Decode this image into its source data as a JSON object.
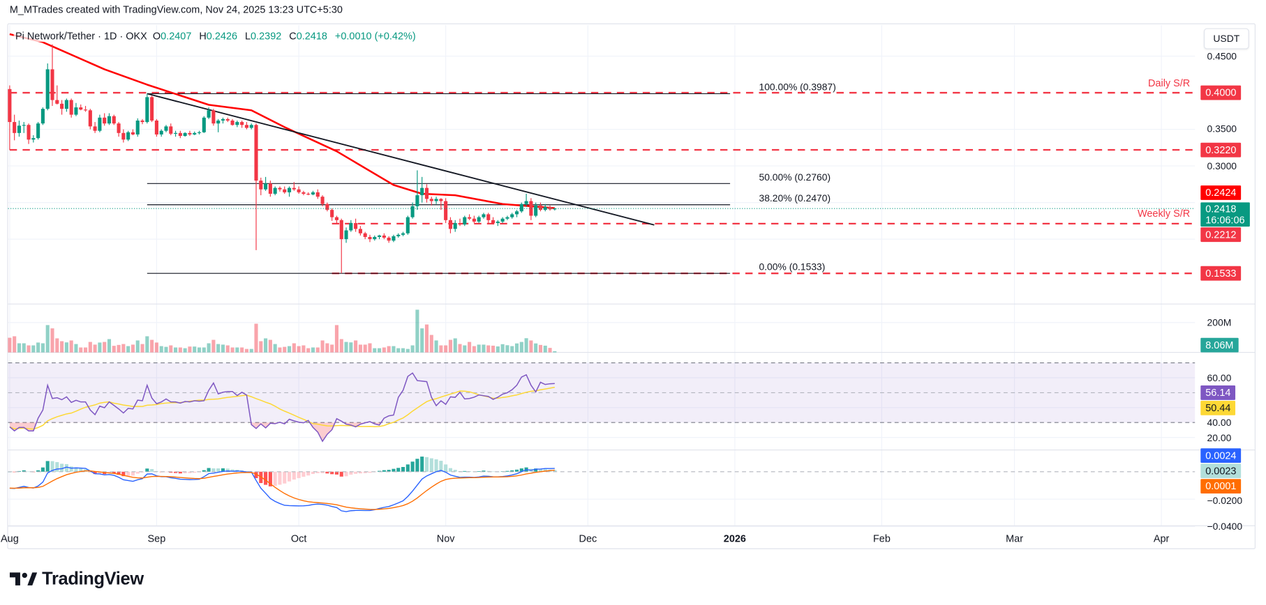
{
  "attribution": "M_MTrades created with TradingView.com, Nov 24, 2025 13:23 UTC+5:30",
  "legend": {
    "symbol": "Pi Network/Tether · 1D · OKX",
    "o_label": "O",
    "o": "0.2407",
    "h_label": "H",
    "h": "0.2426",
    "l_label": "L",
    "l": "0.2392",
    "c_label": "C",
    "c": "0.2418",
    "change": "+0.0010 (+0.42%)"
  },
  "currency_button": "USDT",
  "brand": "TradingView",
  "colors": {
    "up": "#089981",
    "down": "#f23645",
    "ma": "#ff0000",
    "sr": "#f23645",
    "rsi": "#7e57c2",
    "rsi_ma": "#fdd835",
    "macd": "#2962ff",
    "signal": "#ff6d00",
    "fib": "#131722",
    "trendline": "#131722"
  },
  "chart_data": [
    {
      "type": "candlestick",
      "pane": "price",
      "interval": "1D",
      "ylim": [
        0.14,
        0.47
      ],
      "grid": true,
      "y_ticks": [
        "0.4500",
        "0.3500",
        "0.3000"
      ],
      "candles_by_month": {
        "2025-08": [
          [
            0.405,
            0.41,
            0.322,
            0.36
          ],
          [
            0.36,
            0.37,
            0.335,
            0.345
          ],
          [
            0.345,
            0.362,
            0.34,
            0.355
          ],
          [
            0.355,
            0.36,
            0.345,
            0.356
          ],
          [
            0.356,
            0.358,
            0.33,
            0.336
          ],
          [
            0.336,
            0.342,
            0.332,
            0.338
          ],
          [
            0.338,
            0.36,
            0.336,
            0.358
          ],
          [
            0.358,
            0.38,
            0.356,
            0.378
          ],
          [
            0.378,
            0.44,
            0.376,
            0.432
          ],
          [
            0.432,
            0.466,
            0.382,
            0.39
          ],
          [
            0.39,
            0.41,
            0.384,
            0.385
          ],
          [
            0.385,
            0.39,
            0.37,
            0.378
          ],
          [
            0.378,
            0.392,
            0.374,
            0.39
          ],
          [
            0.39,
            0.392,
            0.366,
            0.37
          ],
          [
            0.37,
            0.386,
            0.368,
            0.38
          ],
          [
            0.38,
            0.384,
            0.376,
            0.377
          ],
          [
            0.377,
            0.382,
            0.374,
            0.376
          ],
          [
            0.376,
            0.378,
            0.35,
            0.354
          ],
          [
            0.354,
            0.36,
            0.345,
            0.348
          ],
          [
            0.348,
            0.37,
            0.346,
            0.366
          ],
          [
            0.366,
            0.372,
            0.355,
            0.358
          ],
          [
            0.358,
            0.372,
            0.356,
            0.368
          ],
          [
            0.368,
            0.37,
            0.356,
            0.358
          ],
          [
            0.358,
            0.36,
            0.34,
            0.345
          ],
          [
            0.345,
            0.35,
            0.332,
            0.336
          ],
          [
            0.336,
            0.348,
            0.334,
            0.346
          ],
          [
            0.346,
            0.35,
            0.342,
            0.343
          ],
          [
            0.343,
            0.365,
            0.34,
            0.362
          ],
          [
            0.362,
            0.364,
            0.357,
            0.36
          ],
          [
            0.36,
            0.3987,
            0.358,
            0.394
          ],
          [
            0.394,
            0.396,
            0.36,
            0.362
          ]
        ],
        "2025-09": [
          [
            0.362,
            0.364,
            0.34,
            0.343
          ],
          [
            0.343,
            0.35,
            0.34,
            0.348
          ],
          [
            0.348,
            0.356,
            0.346,
            0.354
          ],
          [
            0.354,
            0.358,
            0.342,
            0.344
          ],
          [
            0.344,
            0.348,
            0.34,
            0.345
          ],
          [
            0.345,
            0.348,
            0.338,
            0.341
          ],
          [
            0.341,
            0.346,
            0.34,
            0.345
          ],
          [
            0.345,
            0.348,
            0.341,
            0.343
          ],
          [
            0.343,
            0.347,
            0.342,
            0.345
          ],
          [
            0.345,
            0.348,
            0.343,
            0.346
          ],
          [
            0.346,
            0.368,
            0.345,
            0.366
          ],
          [
            0.366,
            0.38,
            0.364,
            0.376
          ],
          [
            0.376,
            0.378,
            0.355,
            0.358
          ],
          [
            0.358,
            0.364,
            0.346,
            0.362
          ],
          [
            0.362,
            0.366,
            0.358,
            0.364
          ],
          [
            0.364,
            0.366,
            0.36,
            0.362
          ],
          [
            0.362,
            0.364,
            0.355,
            0.356
          ],
          [
            0.356,
            0.362,
            0.353,
            0.36
          ],
          [
            0.36,
            0.362,
            0.352,
            0.356
          ],
          [
            0.356,
            0.36,
            0.35,
            0.352
          ],
          [
            0.352,
            0.358,
            0.35,
            0.356
          ],
          [
            0.356,
            0.358,
            0.185,
            0.28
          ],
          [
            0.28,
            0.284,
            0.26,
            0.268
          ],
          [
            0.268,
            0.285,
            0.266,
            0.276
          ],
          [
            0.276,
            0.28,
            0.258,
            0.262
          ],
          [
            0.262,
            0.272,
            0.26,
            0.27
          ],
          [
            0.27,
            0.272,
            0.265,
            0.268
          ],
          [
            0.268,
            0.272,
            0.262,
            0.264
          ],
          [
            0.264,
            0.272,
            0.258,
            0.27
          ],
          [
            0.27,
            0.278,
            0.266,
            0.268
          ]
        ],
        "2025-10": [
          [
            0.268,
            0.272,
            0.262,
            0.264
          ],
          [
            0.264,
            0.266,
            0.26,
            0.262
          ],
          [
            0.262,
            0.264,
            0.26,
            0.261
          ],
          [
            0.261,
            0.266,
            0.26,
            0.264
          ],
          [
            0.264,
            0.268,
            0.255,
            0.258
          ],
          [
            0.258,
            0.26,
            0.245,
            0.248
          ],
          [
            0.248,
            0.25,
            0.238,
            0.24
          ],
          [
            0.24,
            0.242,
            0.225,
            0.23
          ],
          [
            0.23,
            0.232,
            0.222,
            0.226
          ],
          [
            0.226,
            0.228,
            0.1533,
            0.2
          ],
          [
            0.2,
            0.216,
            0.195,
            0.212
          ],
          [
            0.212,
            0.226,
            0.21,
            0.222
          ],
          [
            0.222,
            0.228,
            0.21,
            0.214
          ],
          [
            0.214,
            0.218,
            0.205,
            0.208
          ],
          [
            0.208,
            0.21,
            0.2,
            0.203
          ],
          [
            0.203,
            0.206,
            0.196,
            0.2
          ],
          [
            0.2,
            0.205,
            0.198,
            0.203
          ],
          [
            0.203,
            0.206,
            0.2,
            0.205
          ],
          [
            0.205,
            0.208,
            0.2,
            0.202
          ],
          [
            0.202,
            0.204,
            0.195,
            0.198
          ],
          [
            0.198,
            0.206,
            0.196,
            0.204
          ],
          [
            0.204,
            0.208,
            0.202,
            0.206
          ],
          [
            0.206,
            0.21,
            0.204,
            0.208
          ],
          [
            0.208,
            0.232,
            0.206,
            0.23
          ],
          [
            0.23,
            0.25,
            0.228,
            0.245
          ],
          [
            0.245,
            0.294,
            0.24,
            0.26
          ],
          [
            0.26,
            0.285,
            0.25,
            0.27
          ],
          [
            0.27,
            0.275,
            0.25,
            0.255
          ],
          [
            0.255,
            0.258,
            0.246,
            0.252
          ],
          [
            0.252,
            0.258,
            0.248,
            0.255
          ],
          [
            0.255,
            0.256,
            0.24,
            0.252
          ]
        ],
        "2025-11": [
          [
            0.252,
            0.256,
            0.222,
            0.226
          ],
          [
            0.226,
            0.23,
            0.208,
            0.214
          ],
          [
            0.214,
            0.226,
            0.21,
            0.222
          ],
          [
            0.222,
            0.228,
            0.218,
            0.22
          ],
          [
            0.22,
            0.232,
            0.218,
            0.23
          ],
          [
            0.23,
            0.234,
            0.226,
            0.228
          ],
          [
            0.228,
            0.232,
            0.222,
            0.224
          ],
          [
            0.224,
            0.232,
            0.222,
            0.23
          ],
          [
            0.23,
            0.236,
            0.228,
            0.234
          ],
          [
            0.234,
            0.236,
            0.222,
            0.226
          ],
          [
            0.226,
            0.23,
            0.22,
            0.222
          ],
          [
            0.222,
            0.226,
            0.218,
            0.224
          ],
          [
            0.224,
            0.23,
            0.222,
            0.228
          ],
          [
            0.228,
            0.232,
            0.226,
            0.23
          ],
          [
            0.23,
            0.236,
            0.228,
            0.234
          ],
          [
            0.234,
            0.24,
            0.23,
            0.238
          ],
          [
            0.238,
            0.25,
            0.236,
            0.248
          ],
          [
            0.248,
            0.262,
            0.244,
            0.252
          ],
          [
            0.252,
            0.256,
            0.226,
            0.232
          ],
          [
            0.232,
            0.25,
            0.23,
            0.246
          ],
          [
            0.246,
            0.25,
            0.238,
            0.24
          ],
          [
            0.24,
            0.248,
            0.238,
            0.244
          ],
          [
            0.244,
            0.246,
            0.239,
            0.2407
          ],
          [
            0.2407,
            0.2426,
            0.2392,
            0.2418
          ]
        ]
      },
      "moving_average": {
        "points": [
          [
            "2025-08-01",
            0.48
          ],
          [
            "2025-08-08",
            0.469
          ],
          [
            "2025-08-21",
            0.432
          ],
          [
            "2025-08-30",
            0.411
          ],
          [
            "2025-09-12",
            0.3835
          ],
          [
            "2025-09-21",
            0.376
          ],
          [
            "2025-09-28",
            0.353
          ],
          [
            "2025-10-09",
            0.32
          ],
          [
            "2025-10-21",
            0.274
          ],
          [
            "2025-10-27",
            0.262
          ],
          [
            "2025-11-03",
            0.26
          ],
          [
            "2025-11-13",
            0.248
          ],
          [
            "2025-11-24",
            0.2424
          ]
        ]
      },
      "last_price": 0.2418,
      "countdown": "16:06:06",
      "price_markers": [
        {
          "value": 0.4,
          "label": "0.4000",
          "kind": "sr"
        },
        {
          "value": 0.322,
          "label": "0.3220",
          "kind": "sr"
        },
        {
          "value": 0.2424,
          "label": "0.2424",
          "kind": "ma"
        },
        {
          "value": 0.2212,
          "label": "0.2212",
          "kind": "sr"
        },
        {
          "value": 0.1533,
          "label": "0.1533",
          "kind": "sr"
        }
      ],
      "support_resistance": [
        {
          "value": 0.4,
          "from": "2025-08-01",
          "label": "Daily S/R"
        },
        {
          "value": 0.322,
          "from": "2025-08-01",
          "label": ""
        },
        {
          "value": 0.2212,
          "from": "2025-10-08",
          "label": "Weekly S/R"
        },
        {
          "value": 0.1533,
          "from": "2025-10-08",
          "label": ""
        }
      ],
      "fibonacci": {
        "from": "2025-08-30",
        "to": "2025-12-31",
        "levels": [
          {
            "value": 0.3987,
            "label": "100.00% (0.3987)"
          },
          {
            "value": 0.276,
            "label": "50.00% (0.2760)"
          },
          {
            "value": 0.247,
            "label": "38.20% (0.2470)"
          },
          {
            "value": 0.1533,
            "label": "0.00% (0.1533)"
          }
        ]
      },
      "trendline": {
        "start": [
          "2025-08-30",
          0.3987
        ],
        "end": [
          "2025-12-15",
          0.2194
        ]
      }
    },
    {
      "type": "bar",
      "pane": "volume",
      "unit": "M",
      "y_ticks": [
        "200M"
      ],
      "last_label": "8.06M",
      "values": [
        98,
        108,
        61,
        61,
        47,
        47,
        66,
        61,
        183,
        161,
        94,
        75,
        67,
        80,
        56,
        33,
        33,
        70,
        52,
        66,
        70,
        89,
        44,
        50,
        56,
        42,
        52,
        80,
        56,
        108,
        84,
        66,
        42,
        37,
        47,
        33,
        33,
        28,
        39,
        39,
        33,
        33,
        61,
        84,
        56,
        52,
        47,
        33,
        33,
        33,
        23,
        23,
        192,
        75,
        94,
        84,
        56,
        33,
        37,
        42,
        61,
        42,
        47,
        28,
        33,
        33,
        80,
        61,
        52,
        183,
        89,
        70,
        67,
        80,
        52,
        52,
        61,
        28,
        28,
        33,
        42,
        42,
        28,
        28,
        23,
        47,
        286,
        161,
        187,
        117,
        80,
        47,
        47,
        84,
        94,
        56,
        47,
        70,
        42,
        52,
        52,
        47,
        45,
        40,
        55,
        48,
        42,
        60,
        70,
        95,
        80,
        60,
        50,
        45,
        30,
        8.06
      ]
    },
    {
      "type": "line",
      "pane": "rsi",
      "band": [
        30,
        70
      ],
      "mid": 50,
      "y_ticks": [
        "60.00",
        "40.00",
        "20.00"
      ],
      "rsi_label": "56.14",
      "rsi_ma_label": "50.44",
      "values": [
        27.1,
        24.4,
        26.7,
        26.7,
        24.4,
        24.4,
        32.9,
        38.4,
        55.0,
        46.1,
        46.6,
        45.3,
        47.2,
        43.5,
        44.9,
        43.8,
        43.8,
        38.4,
        35.3,
        41.0,
        39.9,
        43.8,
        41.5,
        39.1,
        36.4,
        39.5,
        39.1,
        45.0,
        44.6,
        55.0,
        46.4,
        42.6,
        43.8,
        45.8,
        43.8,
        43.8,
        43.0,
        44.1,
        43.8,
        44.6,
        44.3,
        44.6,
        51.6,
        56.5,
        49.2,
        50.3,
        50.8,
        50.8,
        48.1,
        50.3,
        48.4,
        28.6,
        26.0,
        29.1,
        26.4,
        29.5,
        29.2,
        30.2,
        29.1,
        32.2,
        31.1,
        30.2,
        29.8,
        31.4,
        26.7,
        23.6,
        17.4,
        22.1,
        25.2,
        32.6,
        30.9,
        28.9,
        28.3,
        27.1,
        28.9,
        29.8,
        30.6,
        29.1,
        28.3,
        32.9,
        34.5,
        35.0,
        46.9,
        51.6,
        60.9,
        63.2,
        58.1,
        57.8,
        57.4,
        46.9,
        41.3,
        44.6,
        42.2,
        47.2,
        46.9,
        50.3,
        45.8,
        46.1,
        47.0,
        48.5,
        48.0,
        47.5,
        45.5,
        47.0,
        49.0,
        50.0,
        52.0,
        55.0,
        60.5,
        62.0,
        55.0,
        50.5,
        57.0,
        55.5,
        56.0,
        56.14
      ]
    },
    {
      "type": "macd",
      "pane": "macd",
      "y_ticks": [
        "−0.0200",
        "−0.0400"
      ],
      "labels": {
        "macd": "0.0024",
        "histogram": "0.0023",
        "signal": "0.0001"
      }
    }
  ],
  "time_axis": [
    {
      "label": "Aug",
      "date": "2025-08-01"
    },
    {
      "label": "Sep",
      "date": "2025-09-01"
    },
    {
      "label": "Oct",
      "date": "2025-10-01"
    },
    {
      "label": "Nov",
      "date": "2025-11-01"
    },
    {
      "label": "Dec",
      "date": "2025-12-01"
    },
    {
      "label": "2026",
      "date": "2026-01-01",
      "bold": true
    },
    {
      "label": "Feb",
      "date": "2026-02-01"
    },
    {
      "label": "Mar",
      "date": "2026-03-01"
    },
    {
      "label": "Apr",
      "date": "2026-04-01"
    }
  ]
}
